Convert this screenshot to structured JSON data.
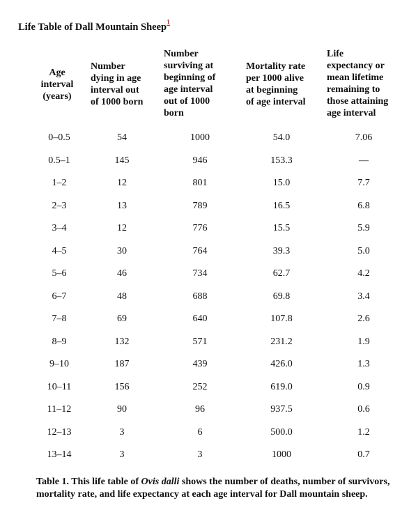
{
  "title": {
    "text": "Life Table of Dall Mountain Sheep",
    "footnote_mark": "1"
  },
  "headers": [
    "Age\ninterval\n(years)",
    "Number\ndying in age\ninterval out\nof 1000 born",
    "Number\nsurviving at\nbeginning of\nage interval\nout of 1000\nborn",
    "Mortality rate\nper 1000 alive\nat beginning\nof age interval",
    "Life\nexpectancy or\nmean lifetime\nremaining to\nthose attaining\nage interval"
  ],
  "rows": [
    [
      "0–0.5",
      "54",
      "1000",
      "54.0",
      "7.06"
    ],
    [
      "0.5–1",
      "145",
      "946",
      "153.3",
      "—"
    ],
    [
      "1–2",
      "12",
      "801",
      "15.0",
      "7.7"
    ],
    [
      "2–3",
      "13",
      "789",
      "16.5",
      "6.8"
    ],
    [
      "3–4",
      "12",
      "776",
      "15.5",
      "5.9"
    ],
    [
      "4–5",
      "30",
      "764",
      "39.3",
      "5.0"
    ],
    [
      "5–6",
      "46",
      "734",
      "62.7",
      "4.2"
    ],
    [
      "6–7",
      "48",
      "688",
      "69.8",
      "3.4"
    ],
    [
      "7–8",
      "69",
      "640",
      "107.8",
      "2.6"
    ],
    [
      "8–9",
      "132",
      "571",
      "231.2",
      "1.9"
    ],
    [
      "9–10",
      "187",
      "439",
      "426.0",
      "1.3"
    ],
    [
      "10–11",
      "156",
      "252",
      "619.0",
      "0.9"
    ],
    [
      "11–12",
      "90",
      "96",
      "937.5",
      "0.6"
    ],
    [
      "12–13",
      "3",
      "6",
      "500.0",
      "1.2"
    ],
    [
      "13–14",
      "3",
      "3",
      "1000",
      "0.7"
    ]
  ],
  "caption": {
    "prefix": "Table 1. This life table of ",
    "species": "Ovis dalli",
    "suffix": " shows the number of deaths, number of survivors, mortality rate, and life expectancy at each age interval for Dall mountain sheep."
  },
  "colors": {
    "footnote_link": "#c0392b",
    "text": "#111111"
  }
}
